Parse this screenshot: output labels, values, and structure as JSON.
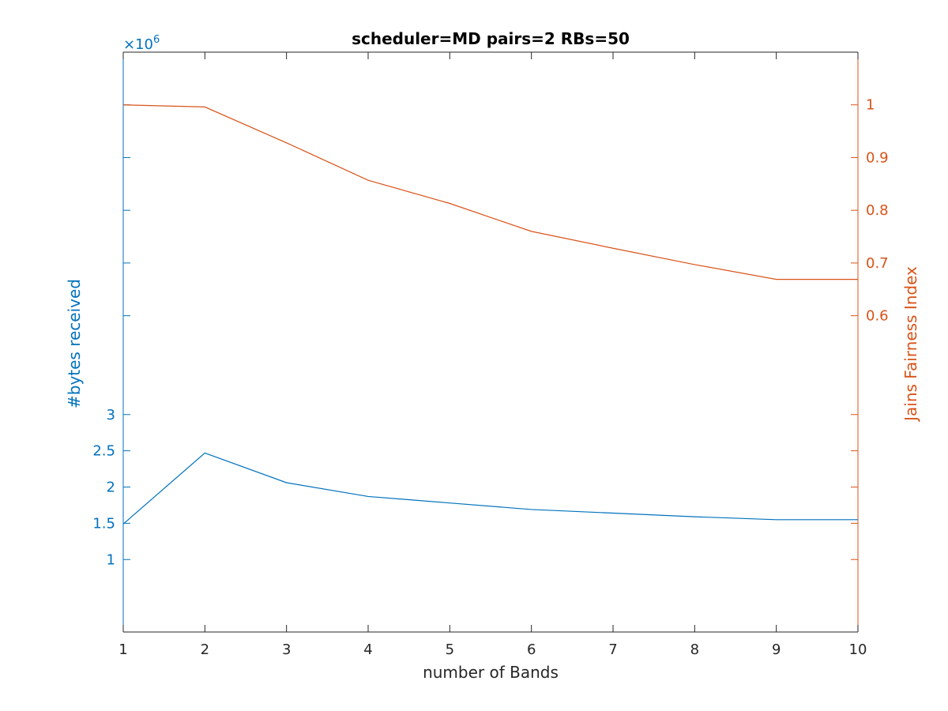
{
  "chart_data": {
    "type": "line",
    "title": "scheduler=MD pairs=2 RBs=50",
    "xlabel": "number of Bands",
    "x": [
      1,
      2,
      3,
      4,
      5,
      6,
      7,
      8,
      9,
      10
    ],
    "xlim": [
      1,
      10
    ],
    "xticks": [
      "1",
      "2",
      "3",
      "4",
      "5",
      "6",
      "7",
      "8",
      "9",
      "10"
    ],
    "y_left": {
      "label": "#bytes received",
      "multiplier": "×10",
      "exponent": "6",
      "ylim": [
        0.0,
        8.0
      ],
      "ticks": [
        1,
        1.5,
        2,
        2.5,
        3
      ],
      "tick_labels": [
        "1",
        "1.5",
        "2",
        "2.5",
        "3"
      ],
      "color": "#0072bd"
    },
    "y_right": {
      "label": "Jains Fairness Index",
      "ylim": [
        0.0,
        1.1
      ],
      "ticks": [
        0.6,
        0.7,
        0.8,
        0.9,
        1
      ],
      "tick_labels": [
        "0.6",
        "0.7",
        "0.8",
        "0.9",
        "1"
      ],
      "color": "#d95319"
    },
    "series": [
      {
        "axis": "left",
        "color": "#0072bd",
        "values": [
          1.49,
          2.47,
          2.06,
          1.87,
          1.78,
          1.69,
          1.64,
          1.59,
          1.55,
          1.55
        ]
      },
      {
        "axis": "right",
        "color": "#d95319",
        "values": [
          1.0,
          0.996,
          0.928,
          0.857,
          0.813,
          0.76,
          0.728,
          0.697,
          0.669,
          0.669
        ]
      }
    ],
    "grid": false,
    "legend": "none"
  }
}
